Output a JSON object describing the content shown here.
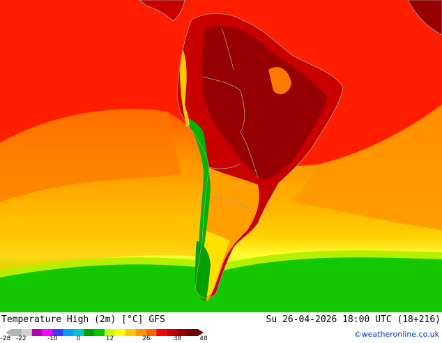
{
  "title": "Temperature High (2m) [°C] GFS",
  "datetime": "Su 26-04-2026 18:00 UTC (18+216)",
  "credit": "©weatheronline.co.uk",
  "legend": {
    "ticks": [
      {
        "label": "-28",
        "value": -28
      },
      {
        "label": "-22",
        "value": -22
      },
      {
        "label": "-10",
        "value": -10
      },
      {
        "label": "0",
        "value": 0
      },
      {
        "label": "12",
        "value": 12
      },
      {
        "label": "26",
        "value": 26
      },
      {
        "label": "38",
        "value": 38
      },
      {
        "label": "48",
        "value": 48
      }
    ],
    "range": [
      -28,
      48
    ],
    "colors": [
      "#b4b4b4",
      "#d2d2d2",
      "#b400b4",
      "#ff00ff",
      "#3c3cff",
      "#00a0ff",
      "#00c8c8",
      "#00a000",
      "#00c800",
      "#c8ff00",
      "#ffff00",
      "#ffc800",
      "#ff9600",
      "#ff6400",
      "#ff0000",
      "#c80000",
      "#960000",
      "#6e0000"
    ]
  },
  "colors": {
    "ocean_orange": "#ff9600",
    "ocean_red": "#ff1e00",
    "ocean_yellow": "#ffdc32",
    "ocean_green": "#00c800",
    "land_hot": "#a00000",
    "border": "#a0a0a0"
  }
}
